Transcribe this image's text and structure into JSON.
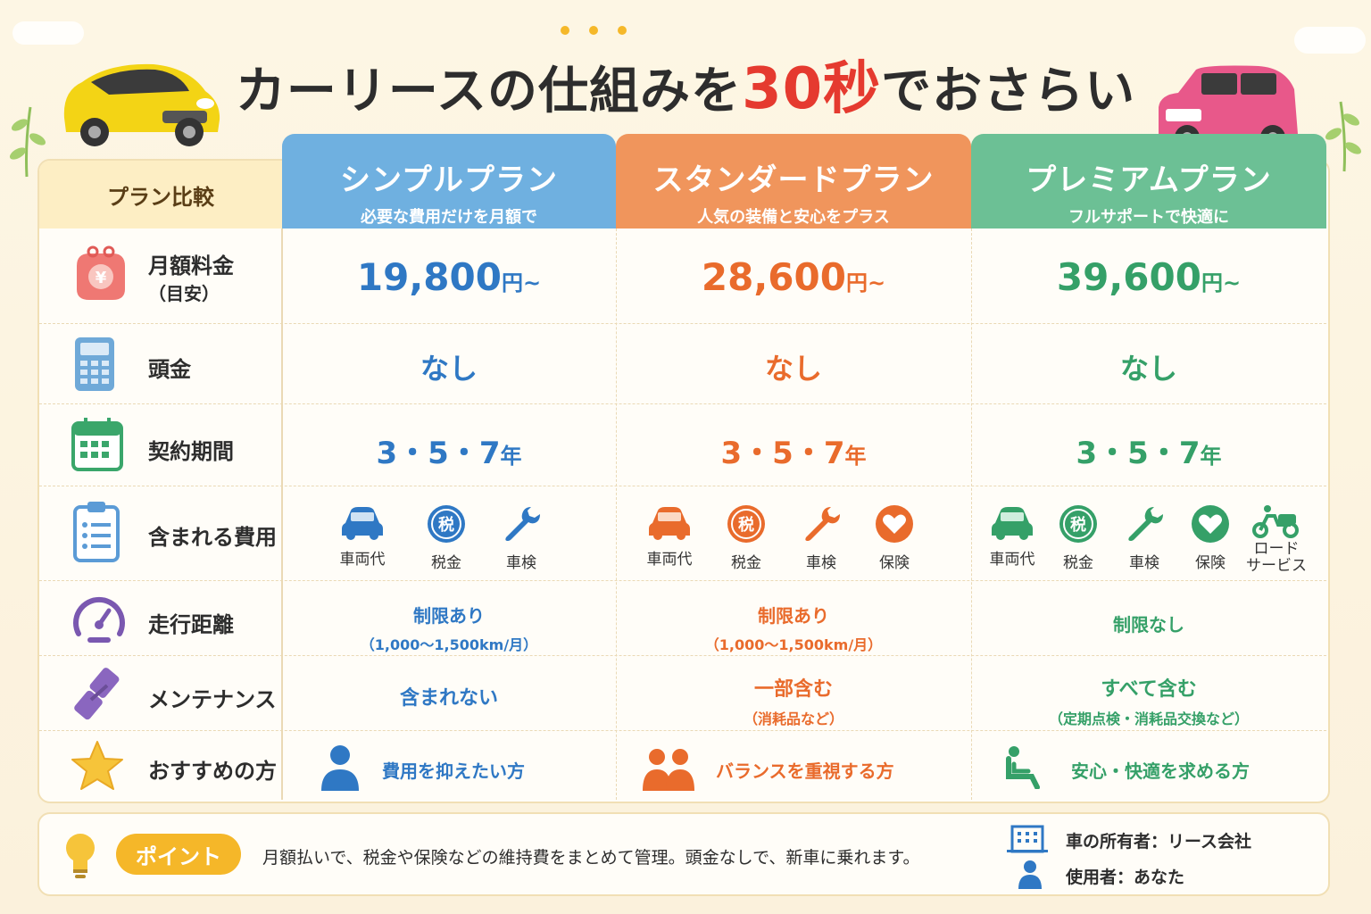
{
  "title": {
    "main": "カーリースの仕組みを",
    "highlight": "30秒",
    "tail": "でおさらい"
  },
  "table": {
    "corner_label": "プラン比較",
    "plans": [
      {
        "name": "シンプルプラン",
        "subtitle": "必要な費用だけを月額で",
        "price": "19,800",
        "price_unit": "円~",
        "down_payment": "なし",
        "term": "3・5・7",
        "term_unit": "年",
        "features": [
          "車両代",
          "税金",
          "車検"
        ],
        "mileage": "制限あり",
        "mileage_note": "（1,000～1,500km/月）",
        "maintenance": "含まれない",
        "maintenance_note": "",
        "recommended": "費用を抑えたい方"
      },
      {
        "name": "スタンダードプラン",
        "subtitle": "人気の装備と安心をプラス",
        "price": "28,600",
        "price_unit": "円~",
        "down_payment": "なし",
        "term": "3・5・7",
        "term_unit": "年",
        "features": [
          "車両代",
          "税金",
          "車検",
          "保険"
        ],
        "mileage": "制限あり",
        "mileage_note": "（1,000～1,500km/月）",
        "maintenance": "一部含む",
        "maintenance_note": "（消耗品など）",
        "recommended": "バランスを重視する方"
      },
      {
        "name": "プレミアムプラン",
        "subtitle": "フルサポートで快適に",
        "price": "39,600",
        "price_unit": "円~",
        "down_payment": "なし",
        "term": "3・5・7",
        "term_unit": "年",
        "features": [
          "車両代",
          "税金",
          "車検",
          "保険",
          "ロード\nサービス"
        ],
        "mileage": "制限なし",
        "mileage_note": "",
        "maintenance": "すべて含む",
        "maintenance_note": "（定期点検・消耗品交換など）",
        "recommended": "安心・快適を求める方"
      }
    ],
    "rows": {
      "monthly_fee": "月額料金",
      "monthly_fee_note": "（目安）",
      "down_payment": "頭金",
      "term": "契約期間",
      "included": "含まれる費用",
      "mileage": "走行距離",
      "maintenance": "メンテナンス",
      "recommended": "おすすめの方"
    },
    "tax_glyph": "税"
  },
  "footer": {
    "badge": "ポイント",
    "note": "月額払いで、税金や保険などの維持費をまとめて管理。頭金なしで、新車に乗れます。",
    "owner": "車の所有者：リース会社",
    "user": "使用者：あなた"
  },
  "colors": {
    "blue": "#2f78c4",
    "orange": "#e96b2c",
    "green": "#35a068",
    "accent_red": "#e53a2f",
    "badge": "#f5b729"
  },
  "icons": [
    "wallet-yen-icon",
    "calculator-icon",
    "calendar-icon",
    "clipboard-icon",
    "speedometer-icon",
    "wrench-icon",
    "star-icon",
    "car-icon",
    "tax-icon",
    "heart-icon",
    "road-service-icon",
    "person-icon",
    "people-icon",
    "seat-icon",
    "lightbulb-icon",
    "building-icon"
  ]
}
